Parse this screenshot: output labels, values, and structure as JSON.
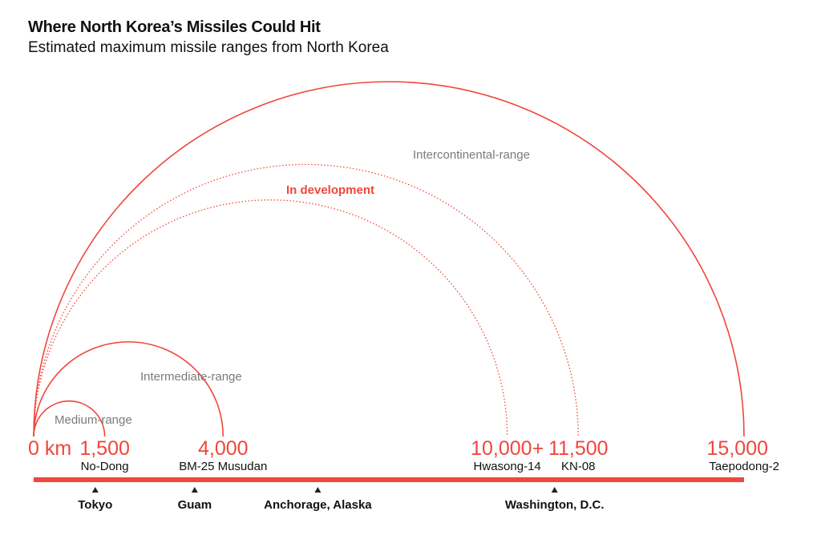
{
  "title": "Where North Korea’s Missiles Could Hit",
  "subtitle": "Estimated maximum missile ranges from North Korea",
  "colors": {
    "accent": "#f0463c",
    "category_label": "#7a7a7a",
    "text": "#111111"
  },
  "chart_data": {
    "type": "arc",
    "xlim": [
      0,
      15000
    ],
    "unit": "km",
    "origin_label": "0 km",
    "missiles": [
      {
        "name": "No-Dong",
        "range": 1500,
        "range_label": "1,500",
        "status": "operational"
      },
      {
        "name": "BM-25 Musudan",
        "range": 4000,
        "range_label": "4,000",
        "status": "operational"
      },
      {
        "name": "Hwasong-14",
        "range": 10000,
        "range_label": "10,000+",
        "status": "in development"
      },
      {
        "name": "KN-08",
        "range": 11500,
        "range_label": "11,500",
        "status": "in development"
      },
      {
        "name": "Taepodong-2",
        "range": 15000,
        "range_label": "15,000",
        "status": "operational"
      }
    ],
    "category_labels": {
      "medium": "Medium-range",
      "intermediate": "Intermediate-range",
      "intercontinental": "Intercontinental-range",
      "in_development": "In development"
    },
    "locations": [
      {
        "name": "Tokyo",
        "distance": 1300
      },
      {
        "name": "Guam",
        "distance": 3400
      },
      {
        "name": "Anchorage, Alaska",
        "distance": 6000
      },
      {
        "name": "Washington, D.C.",
        "distance": 11000
      }
    ]
  }
}
